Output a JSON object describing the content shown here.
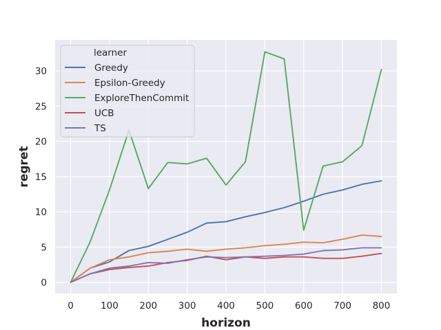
{
  "chart_data": {
    "type": "line",
    "title": "",
    "xlabel": "horizon",
    "ylabel": "regret",
    "xlim": [
      -40,
      840
    ],
    "ylim": [
      -1.6,
      34.4
    ],
    "xticks": [
      0,
      100,
      200,
      300,
      400,
      500,
      600,
      700,
      800
    ],
    "yticks": [
      0,
      5,
      10,
      15,
      20,
      25,
      30
    ],
    "grid": true,
    "legend": {
      "title": "learner",
      "placement": "upper-left"
    },
    "x": [
      0,
      50,
      100,
      150,
      200,
      250,
      300,
      350,
      400,
      450,
      500,
      550,
      600,
      650,
      700,
      750,
      800
    ],
    "series": [
      {
        "name": "Greedy",
        "color": "#4c72b0",
        "values": [
          0,
          2.0,
          2.9,
          4.5,
          5.1,
          6.1,
          7.1,
          8.4,
          8.6,
          9.3,
          9.9,
          10.6,
          11.5,
          12.5,
          13.1,
          13.9,
          14.4
        ]
      },
      {
        "name": "Epsilon-Greedy",
        "color": "#dd8452",
        "values": [
          0,
          2.0,
          3.2,
          3.6,
          4.2,
          4.4,
          4.7,
          4.4,
          4.7,
          4.9,
          5.2,
          5.4,
          5.7,
          5.6,
          6.1,
          6.7,
          6.5
        ]
      },
      {
        "name": "ExploreThenCommit",
        "color": "#55a868",
        "values": [
          0,
          5.7,
          13.1,
          21.6,
          13.3,
          17.0,
          16.8,
          17.6,
          13.8,
          17.1,
          32.7,
          31.7,
          7.4,
          16.5,
          17.1,
          19.4,
          30.2
        ]
      },
      {
        "name": "UCB",
        "color": "#c44e52",
        "values": [
          0,
          1.2,
          1.8,
          2.1,
          2.3,
          2.8,
          3.1,
          3.7,
          3.2,
          3.6,
          3.4,
          3.6,
          3.6,
          3.4,
          3.4,
          3.7,
          4.1
        ]
      },
      {
        "name": "TS",
        "color": "#8172b3",
        "values": [
          0,
          1.2,
          2.0,
          2.3,
          2.8,
          2.7,
          3.2,
          3.6,
          3.5,
          3.6,
          3.7,
          3.8,
          4.0,
          4.5,
          4.6,
          4.9,
          4.9
        ]
      }
    ]
  }
}
